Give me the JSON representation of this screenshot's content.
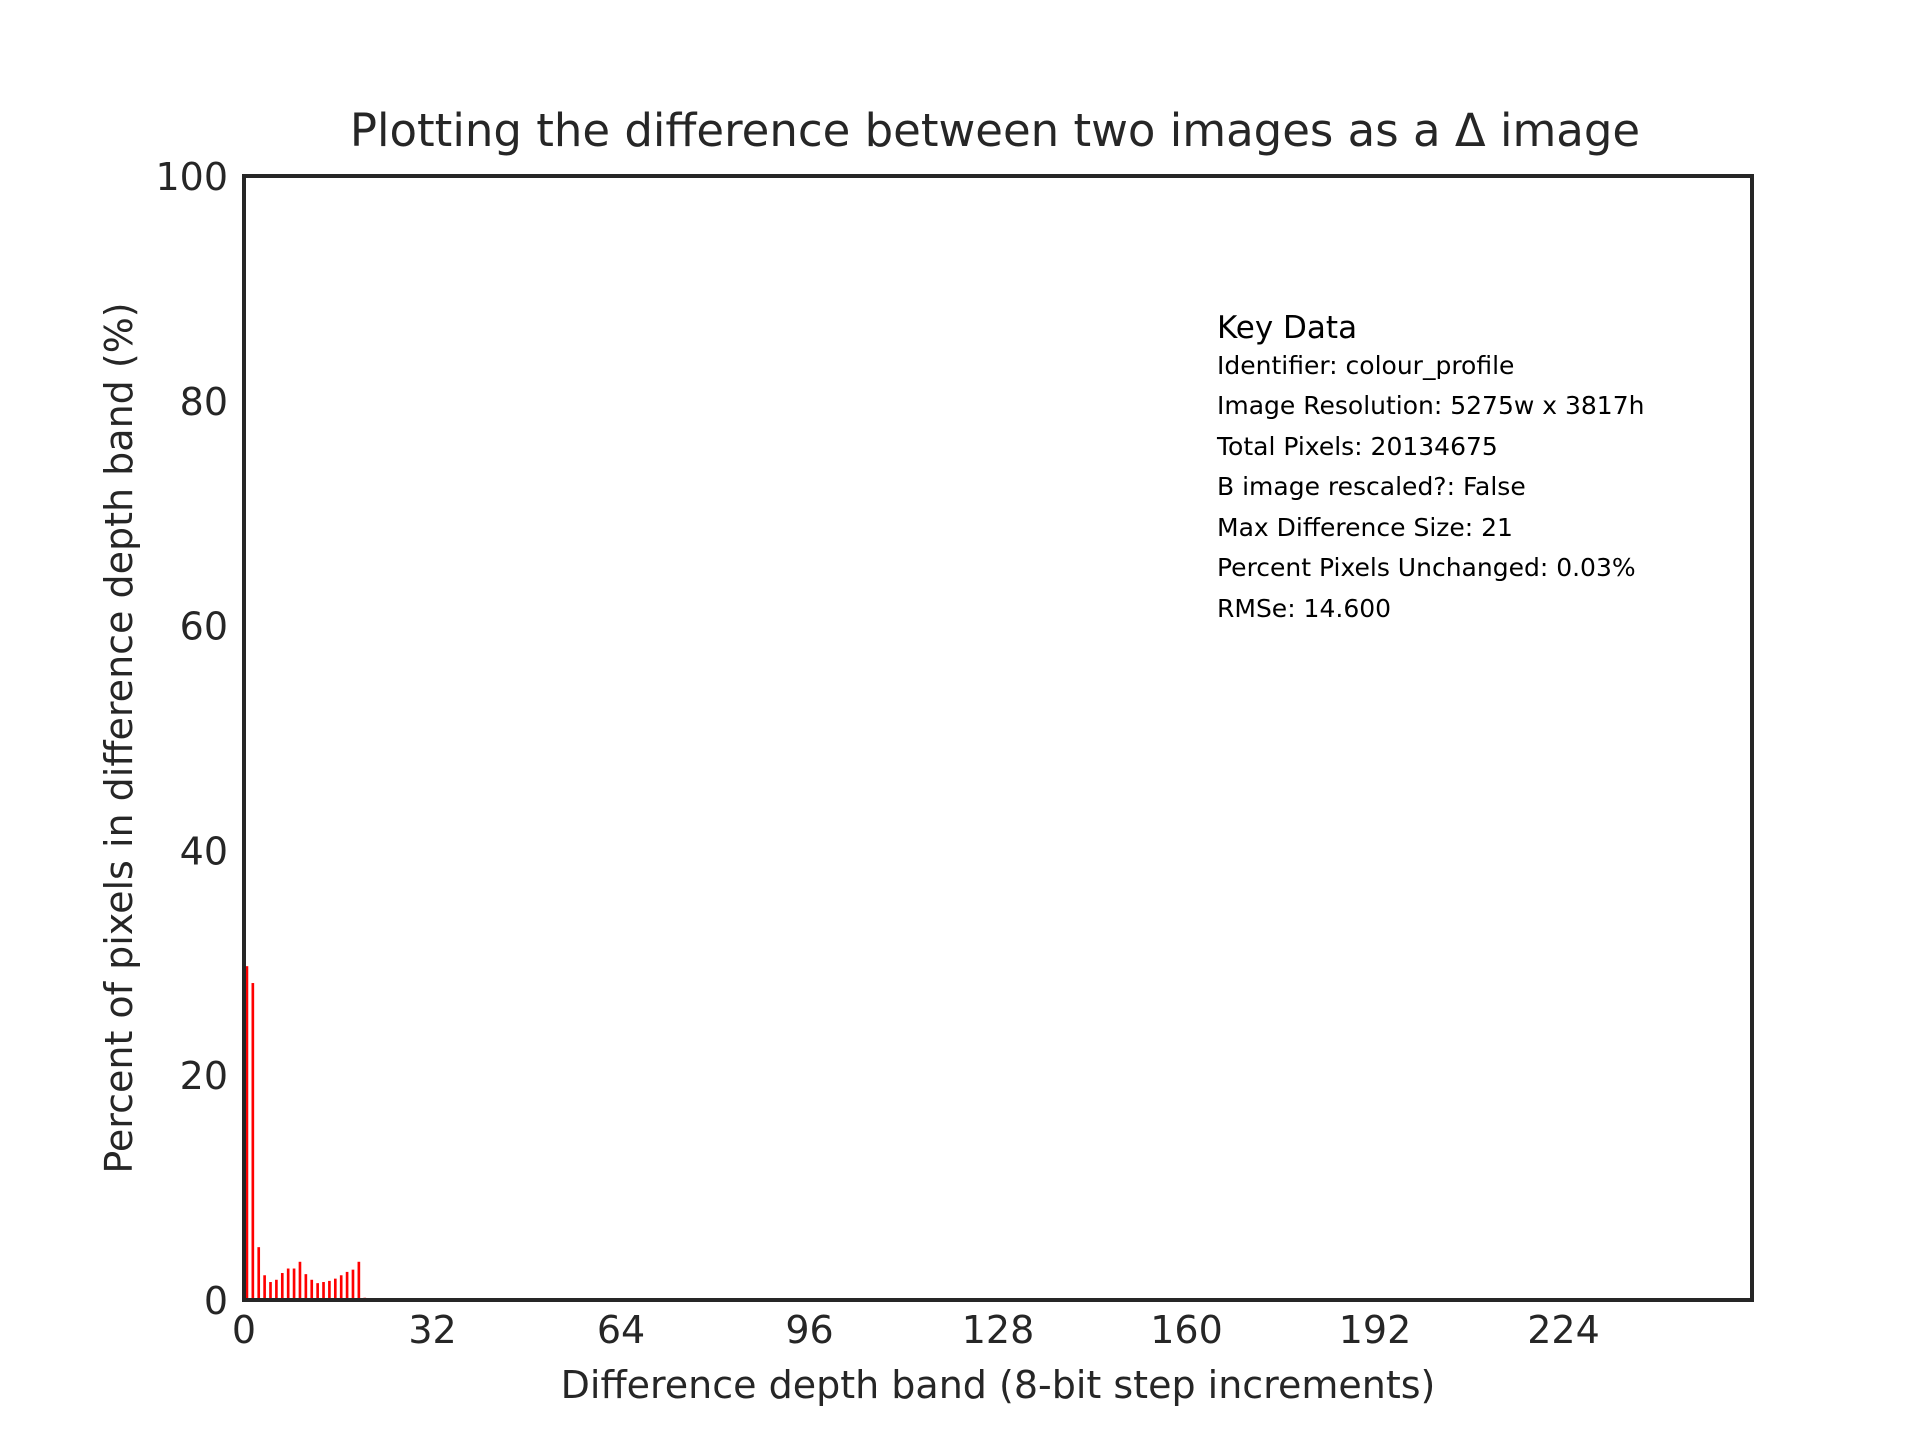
{
  "chart_data": {
    "type": "bar",
    "title": "Plotting the difference between two images as a Δ image",
    "xlabel": "Difference depth band (8-bit step increments)",
    "ylabel": "Percent of pixels in difference depth band (%)",
    "xlim": [
      0,
      256
    ],
    "ylim": [
      0,
      100
    ],
    "xticks": [
      0,
      32,
      64,
      96,
      128,
      160,
      192,
      224
    ],
    "yticks": [
      0,
      20,
      40,
      60,
      80,
      100
    ],
    "grid": false,
    "bar_color": "#ff0000",
    "x": [
      1,
      2,
      3,
      4,
      5,
      6,
      7,
      8,
      9,
      10,
      11,
      12,
      13,
      14,
      15,
      16,
      17,
      18,
      19,
      20,
      21,
      22
    ],
    "values": [
      29.7,
      28.2,
      4.7,
      2.2,
      1.6,
      1.8,
      2.4,
      2.8,
      2.8,
      3.4,
      2.3,
      1.8,
      1.5,
      1.6,
      1.7,
      1.9,
      2.2,
      2.5,
      2.7,
      3.4,
      0.2,
      0.03
    ],
    "annotation": {
      "heading": "Key Data",
      "lines": [
        "Identifier: colour_profile",
        "Image Resolution: 5275w x 3817h",
        "Total Pixels: 20134675",
        "B image rescaled?: False",
        "Max Difference Size: 21",
        "Percent Pixels Unchanged: 0.03%",
        "RMSe: 14.600"
      ]
    }
  }
}
